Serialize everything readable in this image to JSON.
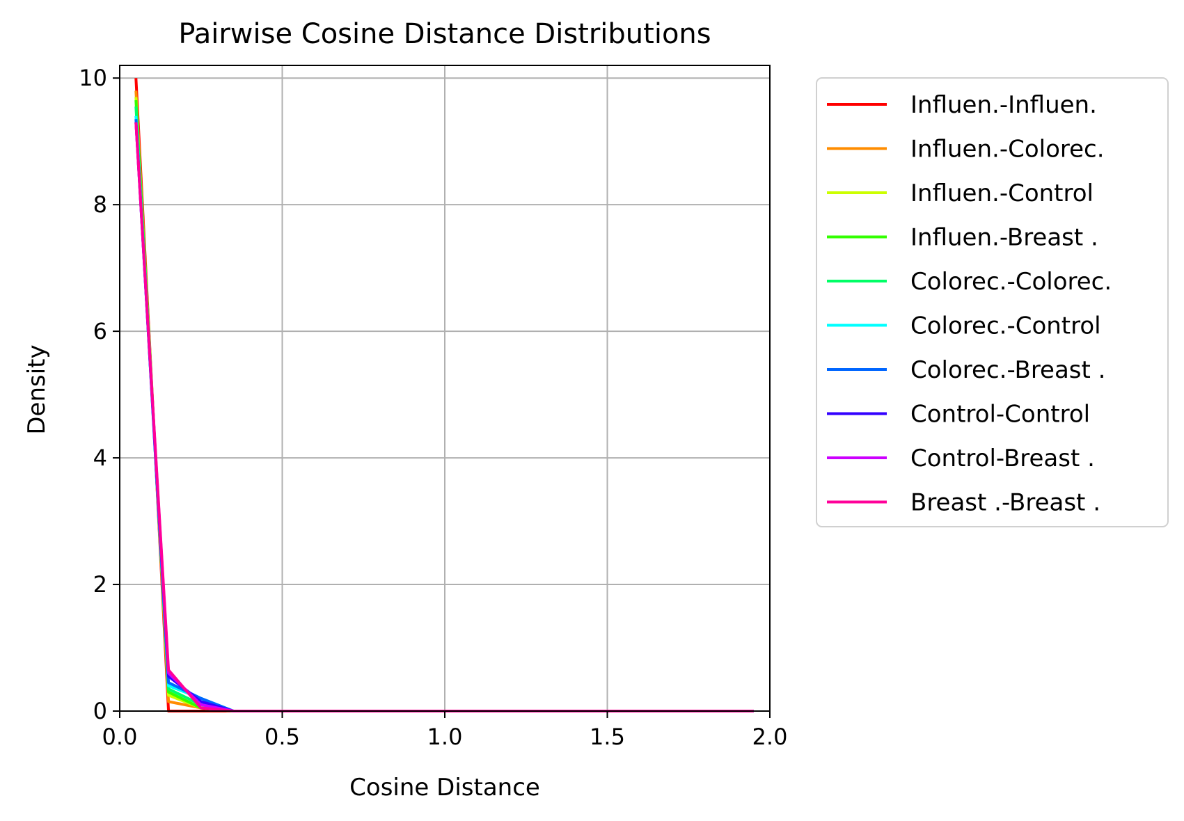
{
  "chart_data": {
    "type": "line",
    "title": "Pairwise Cosine Distance Distributions",
    "xlabel": "Cosine Distance",
    "ylabel": "Density",
    "xlim": [
      0.0,
      2.0
    ],
    "ylim": [
      0,
      10.2
    ],
    "xticks": [
      "0.0",
      "0.5",
      "1.0",
      "1.5",
      "2.0"
    ],
    "xtick_values": [
      0.0,
      0.5,
      1.0,
      1.5,
      2.0
    ],
    "yticks": [
      "0",
      "2",
      "4",
      "6",
      "8",
      "10"
    ],
    "ytick_values": [
      0,
      2,
      4,
      6,
      8,
      10
    ],
    "grid": true,
    "legend_position": "outside-right",
    "x": [
      0.05,
      0.15,
      0.25,
      0.35,
      0.45,
      0.55,
      0.65,
      0.75,
      0.85,
      0.95,
      1.05,
      1.15,
      1.25,
      1.35,
      1.45,
      1.55,
      1.65,
      1.75,
      1.85,
      1.95
    ],
    "series": [
      {
        "name": "Influen.-Influen.",
        "color": "#ff0000",
        "values": [
          10.0,
          0.0,
          0.0,
          0,
          0,
          0,
          0,
          0,
          0,
          0,
          0,
          0,
          0,
          0,
          0,
          0,
          0,
          0,
          0,
          0
        ]
      },
      {
        "name": "Influen.-Colorec.",
        "color": "#ff8c00",
        "values": [
          9.8,
          0.15,
          0.05,
          0,
          0,
          0,
          0,
          0,
          0,
          0,
          0,
          0,
          0,
          0,
          0,
          0,
          0,
          0,
          0,
          0
        ]
      },
      {
        "name": "Influen.-Control",
        "color": "#ccff00",
        "values": [
          9.7,
          0.25,
          0.05,
          0,
          0,
          0,
          0,
          0,
          0,
          0,
          0,
          0,
          0,
          0,
          0,
          0,
          0,
          0,
          0,
          0
        ]
      },
      {
        "name": "Influen.-Breast .",
        "color": "#33ff00",
        "values": [
          9.65,
          0.3,
          0.05,
          0,
          0,
          0,
          0,
          0,
          0,
          0,
          0,
          0,
          0,
          0,
          0,
          0,
          0,
          0,
          0,
          0
        ]
      },
      {
        "name": "Colorec.-Colorec.",
        "color": "#00ff66",
        "values": [
          9.55,
          0.35,
          0.1,
          0,
          0,
          0,
          0,
          0,
          0,
          0,
          0,
          0,
          0,
          0,
          0,
          0,
          0,
          0,
          0,
          0
        ]
      },
      {
        "name": "Colorec.-Control",
        "color": "#00ffff",
        "values": [
          9.4,
          0.4,
          0.2,
          0,
          0,
          0,
          0,
          0,
          0,
          0,
          0,
          0,
          0,
          0,
          0,
          0,
          0,
          0,
          0,
          0
        ]
      },
      {
        "name": "Colorec.-Breast .",
        "color": "#0066ff",
        "values": [
          9.35,
          0.45,
          0.2,
          0,
          0,
          0,
          0,
          0,
          0,
          0,
          0,
          0,
          0,
          0,
          0,
          0,
          0,
          0,
          0,
          0
        ]
      },
      {
        "name": "Control-Control",
        "color": "#3300ff",
        "values": [
          9.3,
          0.55,
          0.15,
          0,
          0,
          0,
          0,
          0,
          0,
          0,
          0,
          0,
          0,
          0,
          0,
          0,
          0,
          0,
          0,
          0
        ]
      },
      {
        "name": "Control-Breast .",
        "color": "#cc00ff",
        "values": [
          9.3,
          0.6,
          0.1,
          0,
          0,
          0,
          0,
          0,
          0,
          0,
          0,
          0,
          0,
          0,
          0,
          0,
          0,
          0,
          0,
          0
        ]
      },
      {
        "name": "Breast .-Breast .",
        "color": "#ff0099",
        "values": [
          9.3,
          0.65,
          0.05,
          0,
          0,
          0,
          0,
          0,
          0,
          0,
          0,
          0,
          0,
          0,
          0,
          0,
          0,
          0,
          0,
          0
        ]
      }
    ]
  }
}
